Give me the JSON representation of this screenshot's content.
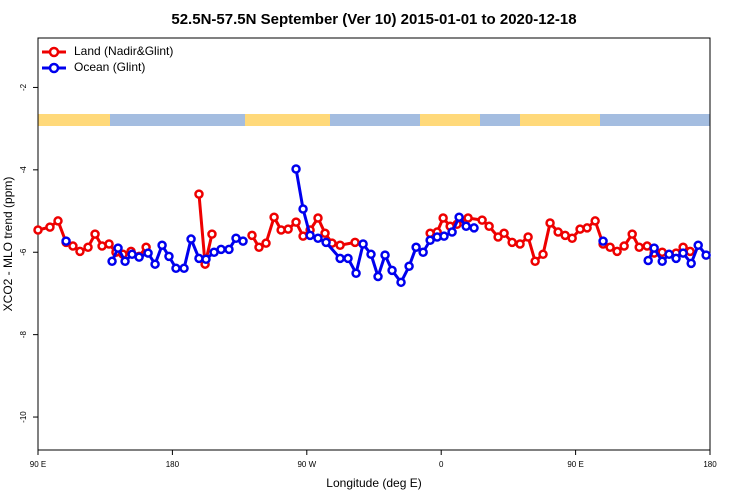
{
  "chart_data": {
    "type": "line",
    "title": "52.5N-57.5N September (Ver 10)   2015-01-01 to 2020-12-18",
    "x_label": "Longitude (deg E)",
    "y_label": "XCO2 - MLO trend (ppm)",
    "xlim": [
      90,
      540
    ],
    "ylim": [
      -10.8,
      -0.8
    ],
    "xticks": [
      {
        "value": 90,
        "label": "90 E"
      },
      180,
      {
        "value": 270,
        "label": "90 W"
      },
      {
        "value": 360,
        "label": "0"
      },
      {
        "value": 450,
        "label": "90 E"
      },
      {
        "value": 540,
        "label": "180"
      }
    ],
    "yticks": [
      -2,
      -4,
      -6,
      -8,
      -10
    ],
    "legend": "top-left",
    "series": [
      {
        "name": "Land (Nadir&Glint)",
        "color": "#ee0000",
        "x": [
          90,
          98.0,
          103.4,
          108.8,
          113.4,
          118.1,
          123.5,
          128.2,
          132.9,
          137.6,
          142.2,
          146.9,
          152.3,
          157.7,
          162.4,
          null,
          197.8,
          201.9,
          206.5,
          null,
          233.3,
          238.0,
          242.7,
          248.1,
          252.8,
          257.5,
          262.8,
          267.5,
          272.2,
          277.5,
          282.2,
          286.9,
          292.3,
          302.3,
          null,
          352.6,
          357.3,
          361.3,
          366.0,
          370.6,
          378.0,
          387.4,
          392.1,
          398.1,
          402.1,
          407.5,
          412.8,
          418.2,
          422.9,
          428.2,
          432.9,
          438.3,
          443.0,
          447.7,
          453.0,
          457.7,
          463.1,
          468.4,
          473.1,
          477.8,
          482.5,
          487.9,
          492.6,
          497.9,
          502.6,
          508.0,
          517.3,
          522.0,
          526.7
        ],
        "values": [
          -5.46,
          -5.39,
          -5.24,
          -5.76,
          -5.85,
          -5.98,
          -5.88,
          -5.56,
          -5.85,
          -5.8,
          -6.0,
          -6.05,
          -5.98,
          -6.1,
          -5.88,
          null,
          -4.59,
          -6.29,
          -5.56,
          null,
          -5.59,
          -5.88,
          -5.78,
          -5.15,
          -5.46,
          -5.44,
          -5.27,
          -5.61,
          -5.46,
          -5.17,
          -5.54,
          -5.78,
          -5.83,
          -5.76,
          null,
          -5.54,
          -5.51,
          -5.17,
          -5.37,
          -5.32,
          -5.17,
          -5.22,
          -5.37,
          -5.63,
          -5.54,
          -5.76,
          -5.8,
          -5.63,
          -6.22,
          -6.05,
          -5.29,
          -5.51,
          -5.59,
          -5.66,
          -5.44,
          -5.41,
          -5.24,
          -5.8,
          -5.88,
          -5.98,
          -5.85,
          -5.56,
          -5.88,
          -5.85,
          -6.02,
          -6.0,
          -6.02,
          -5.88,
          -5.98
        ]
      },
      {
        "name": "Ocean (Glint)",
        "color": "#0000ee",
        "x": [
          108.8,
          null,
          139.6,
          143.6,
          148.3,
          153.0,
          157.7,
          163.7,
          168.4,
          173.1,
          177.7,
          182.4,
          187.8,
          192.5,
          197.8,
          202.5,
          207.9,
          212.6,
          217.9,
          222.6,
          227.3,
          null,
          262.8,
          267.5,
          272.2,
          277.5,
          282.9,
          292.3,
          297.6,
          303.0,
          307.7,
          313.0,
          317.7,
          322.4,
          327.1,
          333.1,
          338.5,
          343.2,
          347.9,
          352.6,
          357.3,
          361.9,
          367.3,
          372.0,
          376.7,
          382.0,
          null,
          468.4,
          null,
          498.6,
          502.6,
          508.0,
          512.6,
          517.3,
          522.0,
          527.4,
          532.1,
          537.4
        ],
        "values": [
          -5.73,
          null,
          -6.22,
          -5.9,
          -6.22,
          -6.05,
          -6.12,
          -6.02,
          -6.29,
          -5.83,
          -6.1,
          -6.39,
          -6.39,
          -5.68,
          -6.15,
          -6.17,
          -6.0,
          -5.93,
          -5.93,
          -5.66,
          -5.73,
          null,
          -3.98,
          -4.95,
          -5.59,
          -5.66,
          -5.76,
          -6.15,
          -6.15,
          -6.51,
          -5.8,
          -6.05,
          -6.59,
          -6.07,
          -6.44,
          -6.73,
          -6.34,
          -5.88,
          -6.0,
          -5.71,
          -5.63,
          -5.61,
          -5.51,
          -5.15,
          -5.37,
          -5.41,
          null,
          -5.73,
          null,
          -6.2,
          -5.9,
          -6.22,
          -6.05,
          -6.15,
          -6.02,
          -6.27,
          -5.83,
          -6.07
        ]
      }
    ]
  }
}
